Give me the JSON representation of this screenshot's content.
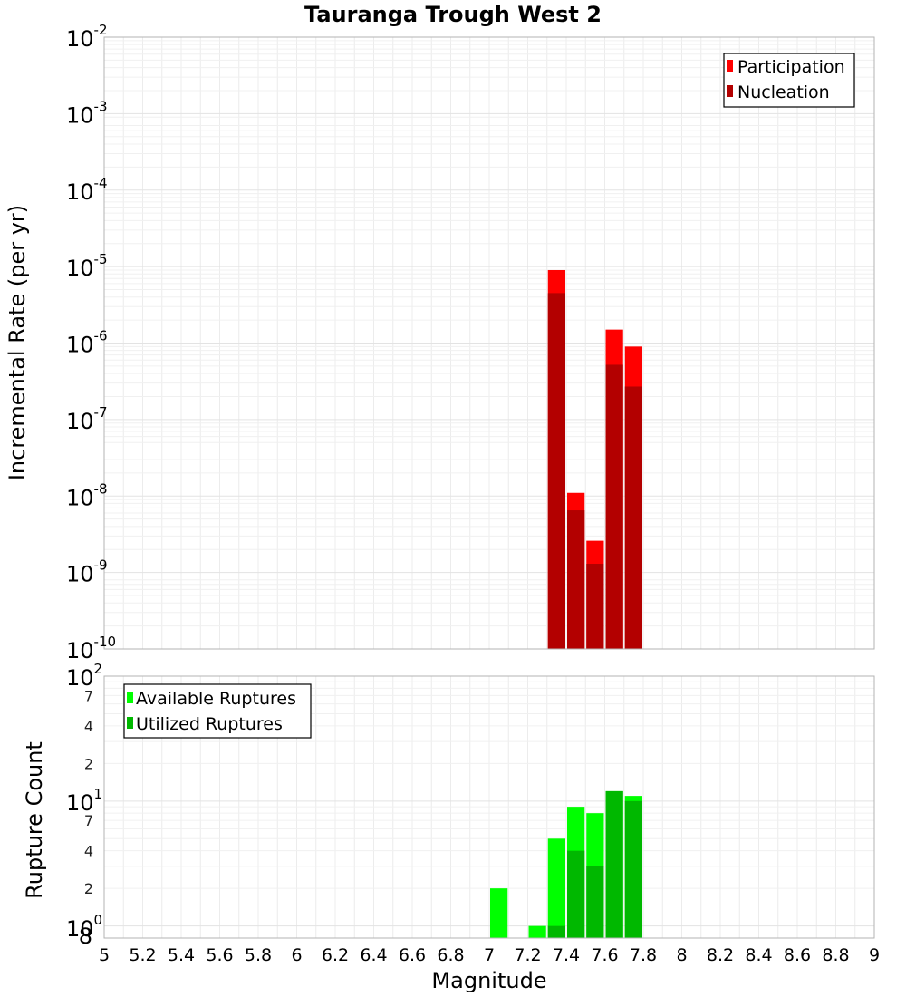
{
  "chart_data": [
    {
      "type": "bar",
      "title": "Tauranga Trough West 2",
      "xlabel": "",
      "ylabel": "Incremental Rate (per yr)",
      "xlim": [
        5,
        9
      ],
      "ylim": [
        1e-10,
        0.01
      ],
      "yscale": "log",
      "grid": true,
      "legend_position": "top-right",
      "bin_width": 0.1,
      "y_ticks": [
        {
          "base": "10",
          "exp": "-10"
        },
        {
          "base": "10",
          "exp": "-9"
        },
        {
          "base": "10",
          "exp": "-8"
        },
        {
          "base": "10",
          "exp": "-7"
        },
        {
          "base": "10",
          "exp": "-6"
        },
        {
          "base": "10",
          "exp": "-5"
        },
        {
          "base": "10",
          "exp": "-4"
        },
        {
          "base": "10",
          "exp": "-3"
        },
        {
          "base": "10",
          "exp": "-2"
        }
      ],
      "series": [
        {
          "name": "Participation",
          "color": "#ff0000",
          "x": [
            7.35,
            7.45,
            7.55,
            7.65,
            7.75
          ],
          "values": [
            9e-06,
            1.1e-08,
            2.6e-09,
            1.5e-06,
            9e-07
          ]
        },
        {
          "name": "Nucleation",
          "color": "#b30000",
          "x": [
            7.35,
            7.45,
            7.55,
            7.65,
            7.75
          ],
          "values": [
            4.5e-06,
            6.5e-09,
            1.3e-09,
            5.2e-07,
            2.7e-07
          ]
        }
      ]
    },
    {
      "type": "bar",
      "title": "",
      "xlabel": "Magnitude",
      "ylabel": "Rupture Count",
      "xlim": [
        5,
        9
      ],
      "ylim": [
        0.8,
        100
      ],
      "yscale": "log",
      "grid": true,
      "legend_position": "top-left",
      "bin_width": 0.1,
      "x_ticks": [
        "5",
        "5.2",
        "5.4",
        "5.6",
        "5.8",
        "6",
        "6.2",
        "6.4",
        "6.6",
        "6.8",
        "7",
        "7.2",
        "7.4",
        "7.6",
        "7.8",
        "8",
        "8.2",
        "8.4",
        "8.6",
        "8.8",
        "9"
      ],
      "y_major_ticks": [
        {
          "base": "10",
          "exp": "0"
        },
        {
          "base": "10",
          "exp": "1"
        },
        {
          "base": "10",
          "exp": "2"
        }
      ],
      "y_minor_ticks": [
        "8",
        "2",
        "4",
        "7",
        "2",
        "4",
        "7"
      ],
      "series": [
        {
          "name": "Available Ruptures",
          "color": "#00ff00",
          "x": [
            7.05,
            7.25,
            7.35,
            7.45,
            7.55,
            7.65,
            7.75
          ],
          "values": [
            2,
            1,
            5,
            9,
            8,
            12,
            11
          ]
        },
        {
          "name": "Utilized Ruptures",
          "color": "#00b800",
          "x": [
            7.05,
            7.25,
            7.35,
            7.45,
            7.55,
            7.65,
            7.75
          ],
          "values": [
            0,
            0,
            1,
            4,
            3,
            12,
            10
          ]
        }
      ]
    }
  ]
}
